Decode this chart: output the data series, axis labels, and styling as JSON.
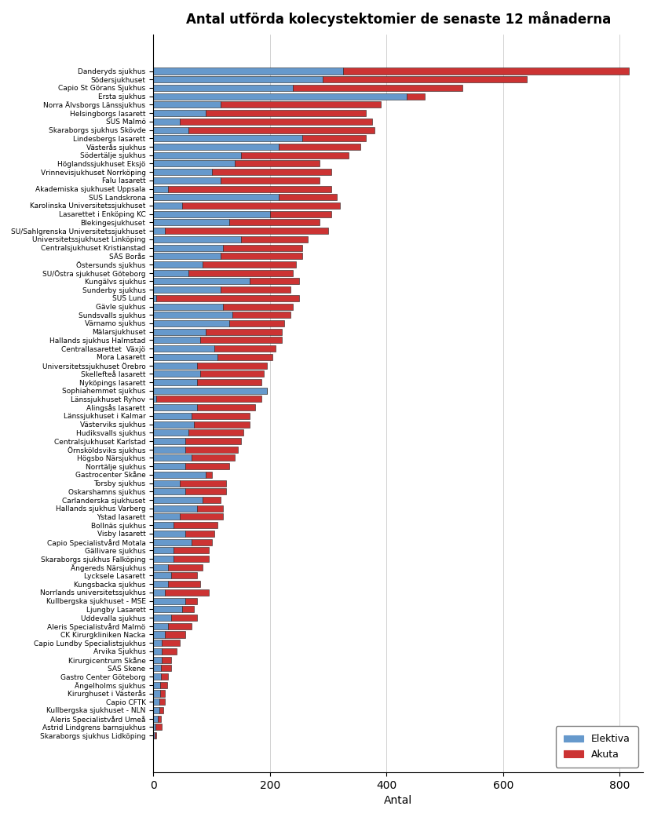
{
  "title": "Antal utförda kolecystektomier de senaste 12 månaderna",
  "xlabel": "Antal",
  "color_elektiva": "#6699CC",
  "color_akuta": "#CC3333",
  "legend_elektiva": "Elektiva",
  "legend_akuta": "Akuta",
  "hospitals": [
    "Danderyds sjukhus",
    "Södersjukhuset",
    "Capio St Görans Sjukhus",
    "Ersta sjukhus",
    "Norra Älvsborgs Länssjukhus",
    "Helsingborgs lasarett",
    "SUS Malmö",
    "Skaraborgs sjukhus Skövde",
    "Lindesbergs lasarett",
    "Västerås sjukhus",
    "Södertälje sjukhus",
    "Höglandssjukhuset Eksjö",
    "Vrinnevisjukhuset Norrköping",
    "Falu lasarett",
    "Akademiska sjukhuset Uppsala",
    "SUS Landskrona",
    "Karolinska Universitetssjukhuset",
    "Lasarettet i Enköping KC",
    "Blekingesjukhuset",
    "SU/Sahlgrenska Universitetssjukhuset",
    "Universitetssjukhuset Linköping",
    "Centralsjukhuset Kristianstad",
    "SÄS Borås",
    "Östersunds sjukhus",
    "SU/Östra sjukhuset Göteborg",
    "Kungälvs sjukhus",
    "Sunderby sjukhus",
    "SUS Lund",
    "Gävle sjukhus",
    "Sundsvalls sjukhus",
    "Värnamo sjukhus",
    "Mälarsjukhuset",
    "Hallands sjukhus Halmstad",
    "Centrallasarettet  Växjö",
    "Mora Lasarett",
    "Universitetssjukhuset Örebro",
    "Skellefteå lasarett",
    "Nyköpings lasarett",
    "Sophiahemmet sjukhus",
    "Länssjukhuset Ryhov",
    "Alingsås lasarett",
    "Länssjukhuset i Kalmar",
    "Västerviks sjukhus",
    "Hudiksvalls sjukhus",
    "Centralsjukhuset Karlstad",
    "Örnsköldsviks sjukhus",
    "Högsbo Närsjukhus",
    "Norrtälje sjukhus",
    "Gastrocenter Skåne",
    "Torsby sjukhus",
    "Oskarshamns sjukhus",
    "Carlanderska sjukhuset",
    "Hallands sjukhus Varberg",
    "Ystad lasarett",
    "Bollnäs sjukhus",
    "Visby lasarett",
    "Capio Specialistvård Motala",
    "Gällivare sjukhus",
    "Skaraborgs sjukhus Falköping",
    "Ängereds Närsjukhus",
    "Lycksele Lasarett",
    "Kungsbacka sjukhus",
    "Norrlands universitetssjukhus",
    "Kullbergska sjukhuset - MSE",
    "Ljungby Lasarett",
    "Uddevalla sjukhus",
    "Aleris Specialistvård Malmö",
    "CK Kirurgkliniken Nacka",
    "Capio Lundby Specialistsjukhus",
    "Arvika Sjukhus",
    "Kirurgicentrum Skåne",
    "SAS Skene",
    "Gastro Center Göteborg",
    "Ängelholms sjukhus",
    "Kirurghuset i Västerås",
    "Capio CFTK",
    "Kullbergska sjukhuset - NLN",
    "Aleris Specialistvård Umeå",
    "Astrid Lindgrens barnsjukhus",
    "Skaraborgs sjukhus Lidköping"
  ],
  "elektiva": [
    325,
    290,
    240,
    435,
    115,
    90,
    45,
    60,
    255,
    215,
    150,
    140,
    100,
    115,
    25,
    215,
    50,
    200,
    130,
    20,
    150,
    120,
    115,
    85,
    60,
    165,
    115,
    5,
    120,
    135,
    130,
    90,
    80,
    105,
    110,
    75,
    80,
    75,
    195,
    5,
    75,
    65,
    70,
    60,
    55,
    55,
    65,
    55,
    90,
    45,
    55,
    85,
    75,
    45,
    35,
    55,
    65,
    35,
    35,
    25,
    30,
    25,
    20,
    55,
    50,
    30,
    25,
    20,
    15,
    15,
    15,
    13,
    13,
    12,
    12,
    11,
    10,
    8,
    4,
    3
  ],
  "akuta": [
    490,
    350,
    290,
    30,
    275,
    275,
    330,
    320,
    110,
    140,
    185,
    145,
    205,
    170,
    280,
    100,
    270,
    105,
    155,
    280,
    115,
    135,
    140,
    160,
    180,
    85,
    120,
    245,
    120,
    100,
    95,
    130,
    140,
    105,
    95,
    120,
    110,
    110,
    0,
    180,
    100,
    100,
    95,
    95,
    95,
    90,
    75,
    75,
    10,
    80,
    70,
    30,
    45,
    75,
    75,
    50,
    35,
    60,
    60,
    60,
    45,
    55,
    75,
    20,
    20,
    45,
    40,
    35,
    30,
    25,
    15,
    17,
    12,
    12,
    8,
    9,
    7,
    5,
    10,
    2
  ]
}
